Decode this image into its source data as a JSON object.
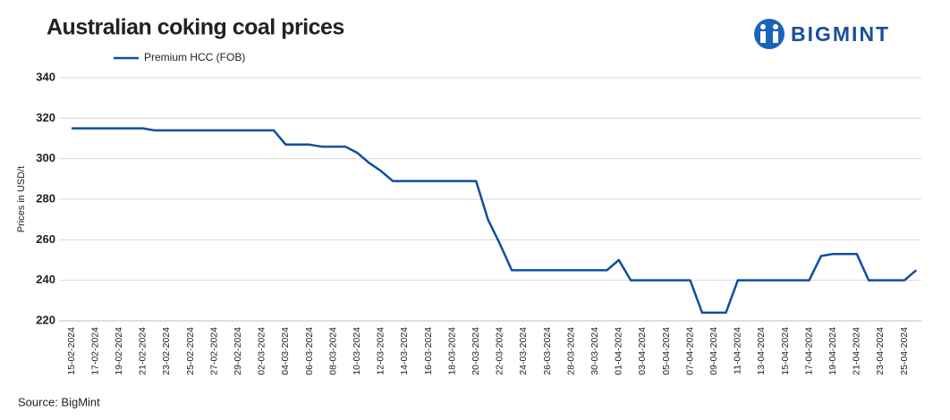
{
  "chart_data": {
    "type": "line",
    "title": "Australian coking coal prices",
    "y_label": "Prices in USD/t",
    "source": "Source: BigMint",
    "logo": "BIGMINT",
    "categories": [
      "15-02-2024",
      null,
      "17-02-2024",
      null,
      "19-02-2024",
      null,
      "21-02-2024",
      null,
      "23-02-2024",
      null,
      "25-02-2024",
      null,
      "27-02-2024",
      null,
      "29-02-2024",
      null,
      "02-03-2024",
      null,
      "04-03-2024",
      null,
      "06-03-2024",
      null,
      "08-03-2024",
      null,
      "10-03-2024",
      null,
      "12-03-2024",
      null,
      "14-03-2024",
      null,
      "16-03-2024",
      null,
      "18-03-2024",
      null,
      "20-03-2024",
      null,
      "22-03-2024",
      null,
      "24-03-2024",
      null,
      "26-03-2024",
      null,
      "28-03-2024",
      null,
      "30-03-2024",
      null,
      "01-04-2024",
      null,
      "03-04-2024",
      null,
      "05-04-2024",
      null,
      "07-04-2024",
      null,
      "09-04-2024",
      null,
      "11-04-2024",
      null,
      "13-04-2024",
      null,
      "15-04-2024",
      null,
      "17-04-2024",
      null,
      "19-04-2024",
      null,
      "21-04-2024",
      null,
      "23-04-2024",
      null,
      "25-04-2024",
      null
    ],
    "series": [
      {
        "name": "Premium HCC (FOB)",
        "color": "#0d4fa0",
        "values": [
          315,
          315,
          315,
          315,
          315,
          315,
          315,
          314,
          314,
          314,
          314,
          314,
          314,
          314,
          314,
          314,
          314,
          314,
          307,
          307,
          307,
          306,
          306,
          306,
          303,
          298,
          294,
          289,
          289,
          289,
          289,
          289,
          289,
          289,
          289,
          270,
          258,
          245,
          245,
          245,
          245,
          245,
          245,
          245,
          245,
          245,
          250,
          240,
          240,
          240,
          240,
          240,
          240,
          224,
          224,
          224,
          240,
          240,
          240,
          240,
          240,
          240,
          240,
          252,
          253,
          253,
          253,
          240,
          240,
          240,
          240,
          245
        ]
      }
    ],
    "ylim": [
      220,
      340
    ],
    "yticks": [
      220,
      240,
      260,
      280,
      300,
      320,
      340
    ],
    "grid": true
  }
}
